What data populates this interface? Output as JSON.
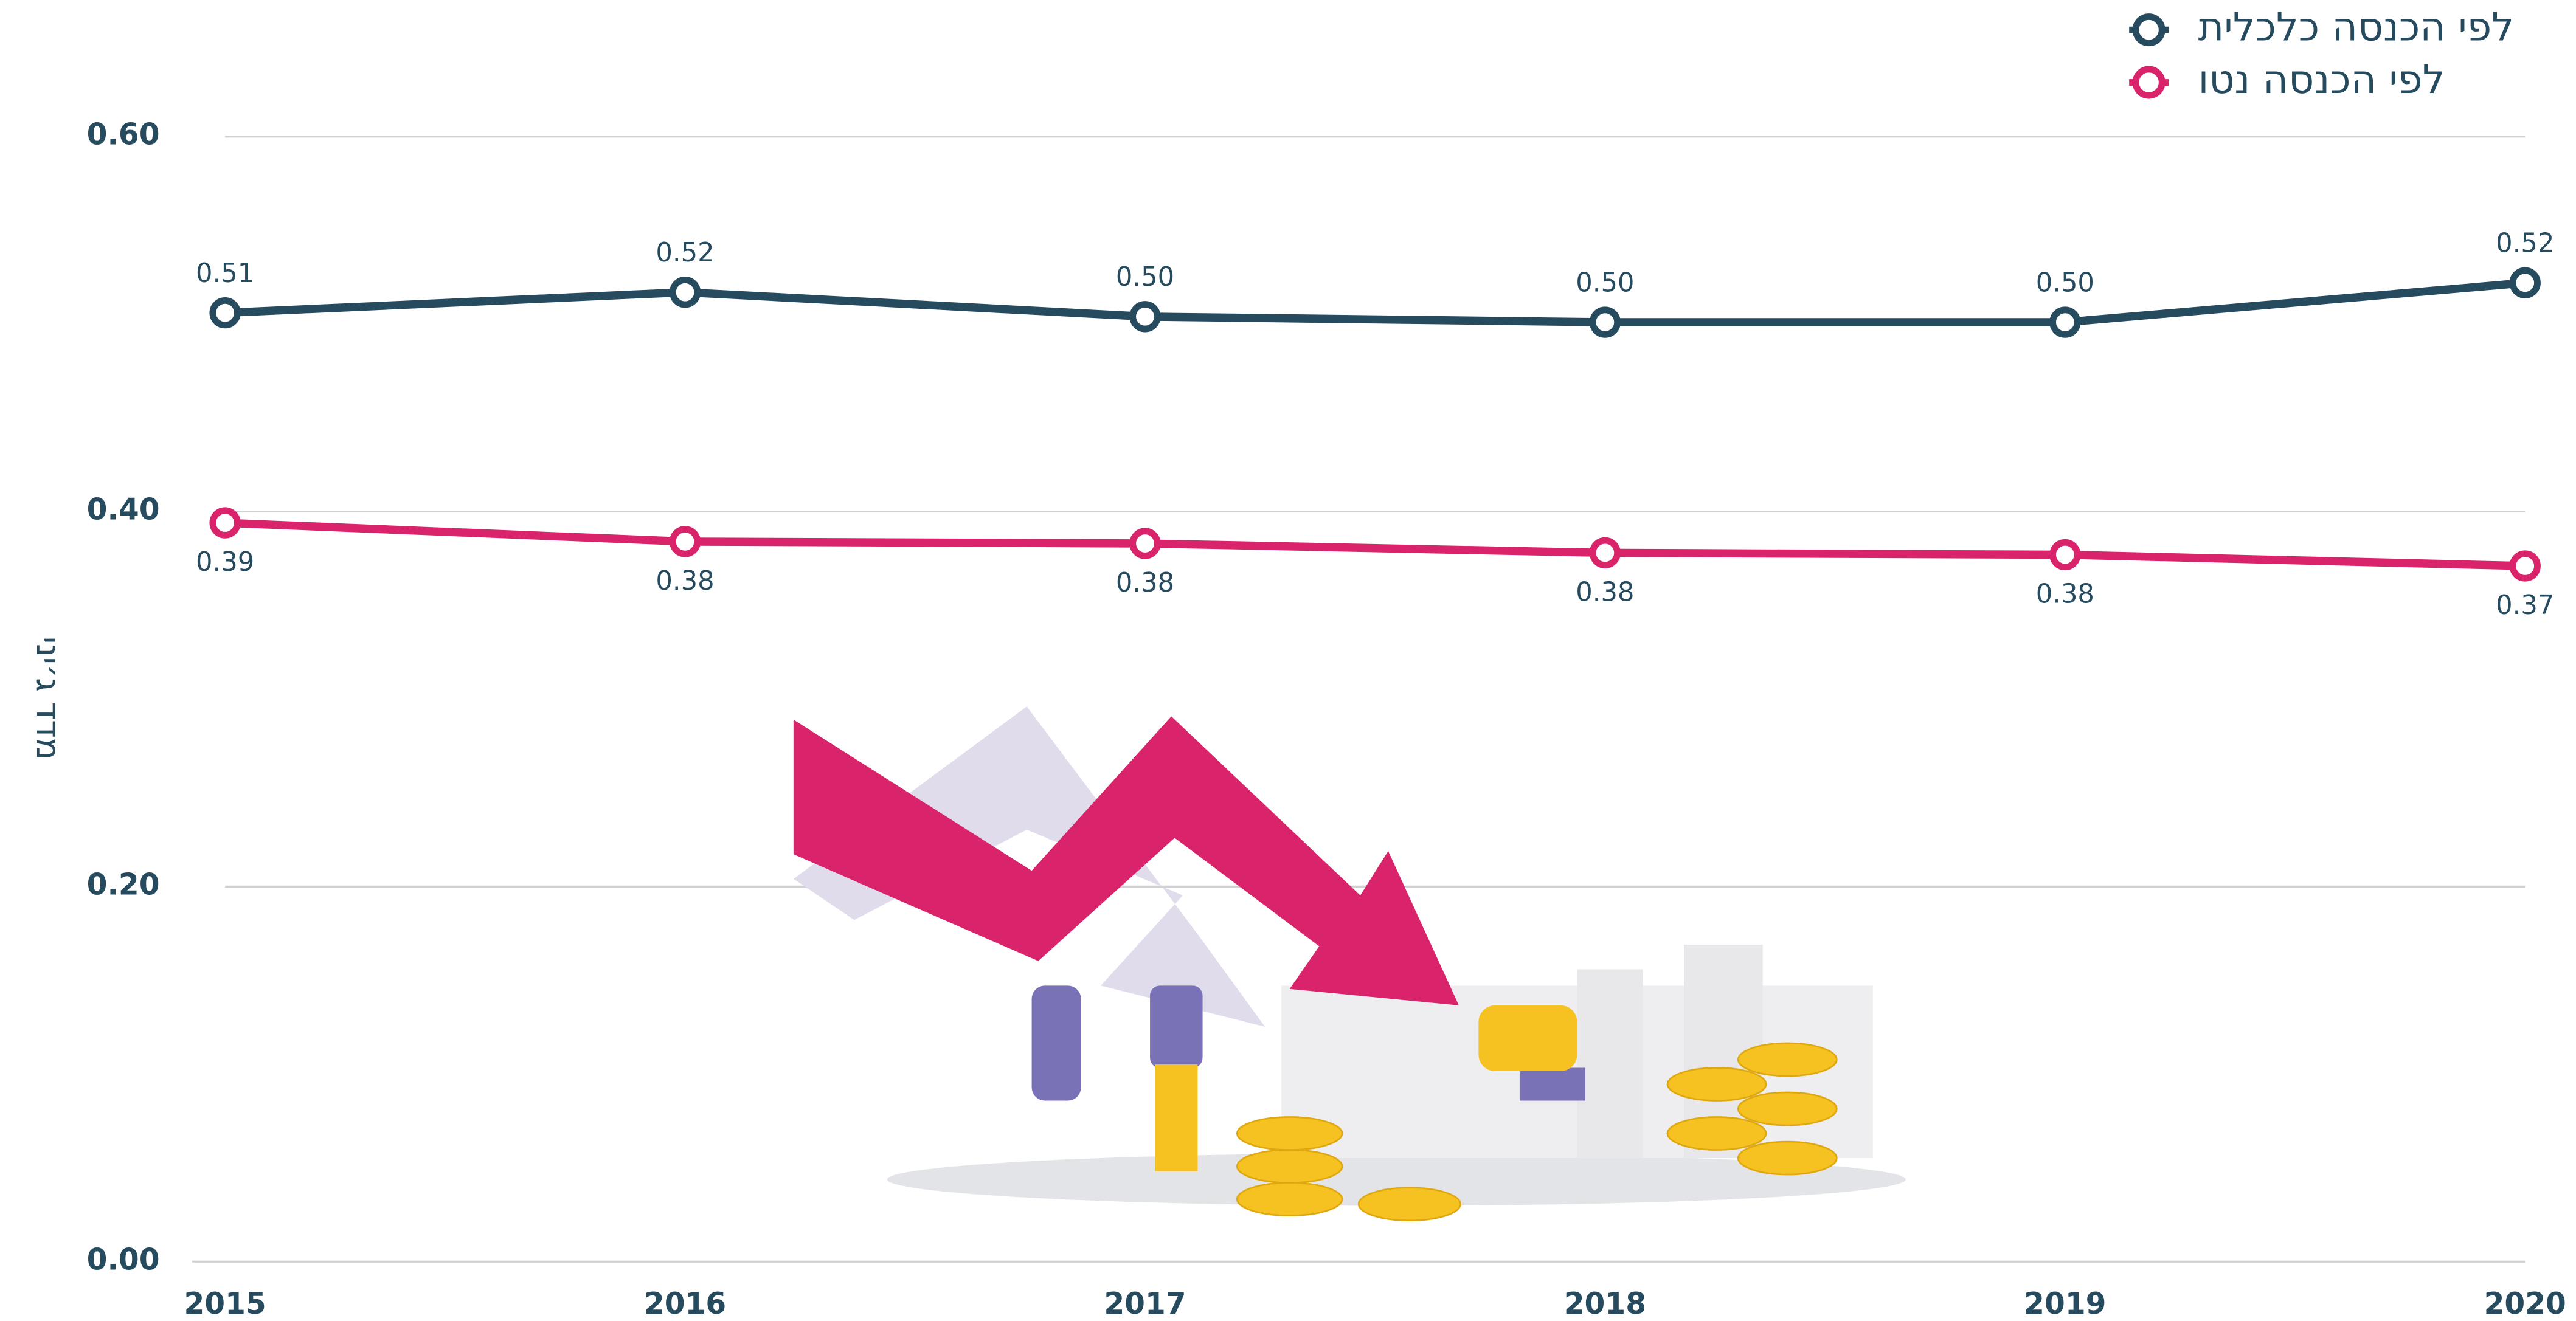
{
  "chart_data": {
    "type": "line",
    "y_label": "מדד ג׳יני",
    "x": [
      "2015",
      "2016",
      "2017",
      "2018",
      "2019",
      "2020"
    ],
    "series": [
      {
        "name": "לפי הכנסה כלכלית",
        "color": "#264a5e",
        "values": [
          0.506,
          0.517,
          0.504,
          0.501,
          0.501,
          0.522
        ],
        "value_labels": [
          "0.51",
          "0.52",
          "0.50",
          "0.50",
          "0.50",
          "0.52"
        ]
      },
      {
        "name": "לפי הכנסה נטו",
        "color": "#d9236b",
        "values": [
          0.394,
          0.384,
          0.383,
          0.378,
          0.377,
          0.371
        ],
        "value_labels": [
          "0.39",
          "0.38",
          "0.38",
          "0.38",
          "0.38",
          "0.37"
        ]
      }
    ],
    "ylim": [
      0,
      0.6
    ],
    "yticks": [
      {
        "value": 0,
        "label": "0.00"
      },
      {
        "value": 0.2,
        "label": "0.20"
      },
      {
        "value": 0.4,
        "label": "0.40"
      },
      {
        "value": 0.6,
        "label": "0.60"
      }
    ],
    "grid": true,
    "legend": "top-right"
  }
}
